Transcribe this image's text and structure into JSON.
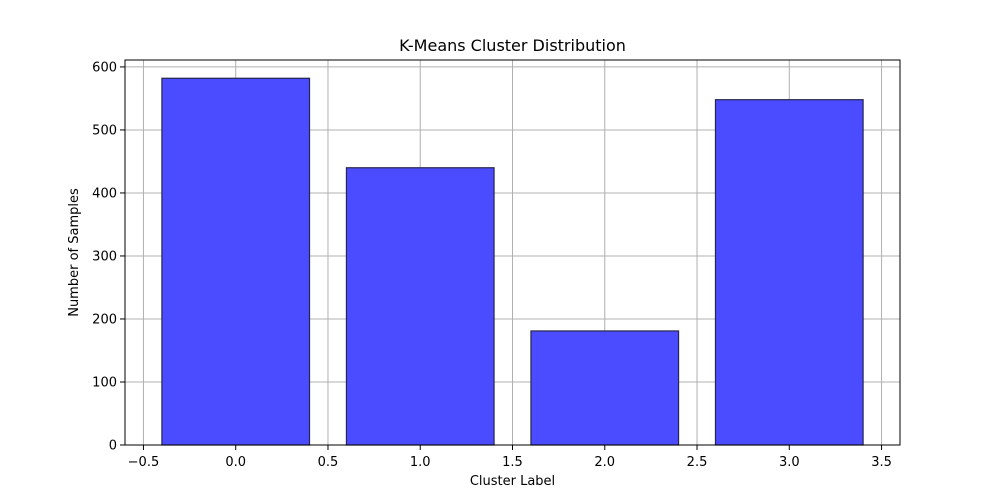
{
  "chart_data": {
    "type": "bar",
    "title": "K-Means Cluster Distribution",
    "xlabel": "Cluster Label",
    "ylabel": "Number of Samples",
    "x": [
      0,
      1,
      2,
      3
    ],
    "values": [
      582,
      440,
      181,
      548
    ],
    "bar_width": 0.8,
    "xlim": [
      -0.6,
      3.6
    ],
    "ylim": [
      0,
      611
    ],
    "xticks": [
      -0.5,
      0.0,
      0.5,
      1.0,
      1.5,
      2.0,
      2.5,
      3.0,
      3.5
    ],
    "xtick_labels": [
      "−0.5",
      "0.0",
      "0.5",
      "1.0",
      "1.5",
      "2.0",
      "2.5",
      "3.0",
      "3.5"
    ],
    "yticks": [
      0,
      100,
      200,
      300,
      400,
      500,
      600
    ],
    "ytick_labels": [
      "0",
      "100",
      "200",
      "300",
      "400",
      "500",
      "600"
    ],
    "grid": true,
    "bar_color": "#4b4bff",
    "bar_edge_color": "#26264d",
    "grid_color": "#b0b0b0"
  }
}
